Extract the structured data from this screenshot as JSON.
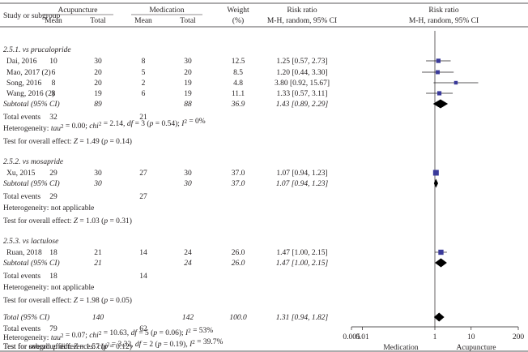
{
  "header": {
    "study_col": "Study or subgroup",
    "group1": "Acupuncture",
    "group2": "Medication",
    "mean": "Mean",
    "total": "Total",
    "weight_line1": "Weight",
    "weight_line2": "(%)",
    "rr_line1": "Risk ratio",
    "rr_line2": "M-H, random, 95% CI",
    "plot_line1": "Risk ratio",
    "plot_line2": "M-H, random, 95% CI"
  },
  "subgroups": [
    {
      "title": "2.5.1. vs prucalopride",
      "studies": [
        {
          "name": "Dai, 2016",
          "a_mean": "10",
          "a_total": "30",
          "m_mean": "8",
          "m_total": "30",
          "weight": "12.5",
          "rr_text": "1.25 [0.57, 2.73]"
        },
        {
          "name": "Mao, 2017 (2)",
          "a_mean": "6",
          "a_total": "20",
          "m_mean": "5",
          "m_total": "20",
          "weight": "8.5",
          "rr_text": "1.20 [0.44, 3.30]"
        },
        {
          "name": "Song, 2016",
          "a_mean": "8",
          "a_total": "20",
          "m_mean": "2",
          "m_total": "19",
          "weight": "4.8",
          "rr_text": "3.80 [0.92, 15.67]"
        },
        {
          "name": "Wang, 2016 (2)",
          "a_mean": "8",
          "a_total": "19",
          "m_mean": "6",
          "m_total": "19",
          "weight": "11.1",
          "rr_text": "1.33 [0.57, 3.11]"
        }
      ],
      "subtotal": {
        "label": "Subtotal (95% CI)",
        "a_total": "89",
        "m_total": "88",
        "weight": "36.9",
        "rr_text": "1.43 [0.89, 2.29]"
      },
      "events": {
        "label": "Total events",
        "a": "32",
        "m": "21"
      },
      "heterogeneity": "Heterogeneity: tau² = 0.00; chi² = 2.14, df = 3 (p = 0.54); I² = 0%",
      "overall": "Test for overall effect: Z = 1.49 (p = 0.14)"
    },
    {
      "title": "2.5.2. vs mosapride",
      "studies": [
        {
          "name": "Xu, 2015",
          "a_mean": "29",
          "a_total": "30",
          "m_mean": "27",
          "m_total": "30",
          "weight": "37.0",
          "rr_text": "1.07 [0.94, 1.23]"
        }
      ],
      "subtotal": {
        "label": "Subtotal (95% CI)",
        "a_total": "30",
        "m_total": "30",
        "weight": "37.0",
        "rr_text": "1.07 [0.94, 1.23]"
      },
      "events": {
        "label": "Total events",
        "a": "29",
        "m": "27"
      },
      "heterogeneity": "Heterogeneity: not applicable",
      "overall": "Test for overall effect: Z = 1.03 (p = 0.31)"
    },
    {
      "title": "2.5.3. vs lactulose",
      "studies": [
        {
          "name": "Ruan, 2018",
          "a_mean": "18",
          "a_total": "21",
          "m_mean": "14",
          "m_total": "24",
          "weight": "26.0",
          "rr_text": "1.47 [1.00, 2.15]"
        }
      ],
      "subtotal": {
        "label": "Subtotal (95% CI)",
        "a_total": "21",
        "m_total": "24",
        "weight": "26.0",
        "rr_text": "1.47 [1.00, 2.15]"
      },
      "events": {
        "label": "Total events",
        "a": "18",
        "m": "14"
      },
      "heterogeneity": "Heterogeneity: not applicable",
      "overall": "Test for overall effect: Z = 1.98 (p = 0.05)"
    }
  ],
  "total": {
    "label": "Total (95% CI)",
    "a_total": "140",
    "m_total": "142",
    "weight": "100.0",
    "rr_text": "1.31 [0.94, 1.82]"
  },
  "total_events": {
    "label": "Total events",
    "a": "79",
    "m": "62"
  },
  "total_heterogeneity": "Heterogeneity: tau² = 0.07; chi² = 10.63, df = 5 (p = 0.06); I² = 53%",
  "total_overall": "Test for overall effect: Z = 1.57 (p = 0.12)",
  "subgroup_diff": "Test for subgroup differences: chi² = 3.32, df = 2 (p = 0.19), I² = 39.7%",
  "axis": {
    "scale": "log",
    "ticks": [
      "0.005",
      "0.01",
      "1",
      "10",
      "200"
    ],
    "left_label": "Medication",
    "right_label": "Acupuncture"
  },
  "colors": {
    "study_marker": "#3a3a9a",
    "diamond": "#000000",
    "text": "#231f20",
    "rule": "#231f20"
  },
  "chart_data": {
    "type": "forest",
    "scale": "log",
    "xlim": [
      0.005,
      200
    ],
    "ticks": [
      0.005,
      0.01,
      1,
      10,
      200
    ],
    "null_line": 1,
    "studies": [
      {
        "name": "Dai, 2016",
        "rr": 1.25,
        "lo": 0.57,
        "hi": 2.73,
        "weight": 12.5
      },
      {
        "name": "Mao, 2017 (2)",
        "rr": 1.2,
        "lo": 0.44,
        "hi": 3.3,
        "weight": 8.5
      },
      {
        "name": "Song, 2016",
        "rr": 3.8,
        "lo": 0.92,
        "hi": 15.67,
        "weight": 4.8
      },
      {
        "name": "Wang, 2016 (2)",
        "rr": 1.33,
        "lo": 0.57,
        "hi": 3.11,
        "weight": 11.1
      },
      {
        "name": "Xu, 2015",
        "rr": 1.07,
        "lo": 0.94,
        "hi": 1.23,
        "weight": 37.0
      },
      {
        "name": "Ruan, 2018",
        "rr": 1.47,
        "lo": 1.0,
        "hi": 2.15,
        "weight": 26.0
      }
    ],
    "subtotals": [
      {
        "label": "Subtotal (95% CI)",
        "rr": 1.43,
        "lo": 0.89,
        "hi": 2.29
      },
      {
        "label": "Subtotal (95% CI)",
        "rr": 1.07,
        "lo": 0.94,
        "hi": 1.23
      },
      {
        "label": "Subtotal (95% CI)",
        "rr": 1.47,
        "lo": 1.0,
        "hi": 2.15
      }
    ],
    "total": {
      "label": "Total (95% CI)",
      "rr": 1.31,
      "lo": 0.94,
      "hi": 1.82
    },
    "xlabel_left": "Medication",
    "xlabel_right": "Acupuncture"
  }
}
